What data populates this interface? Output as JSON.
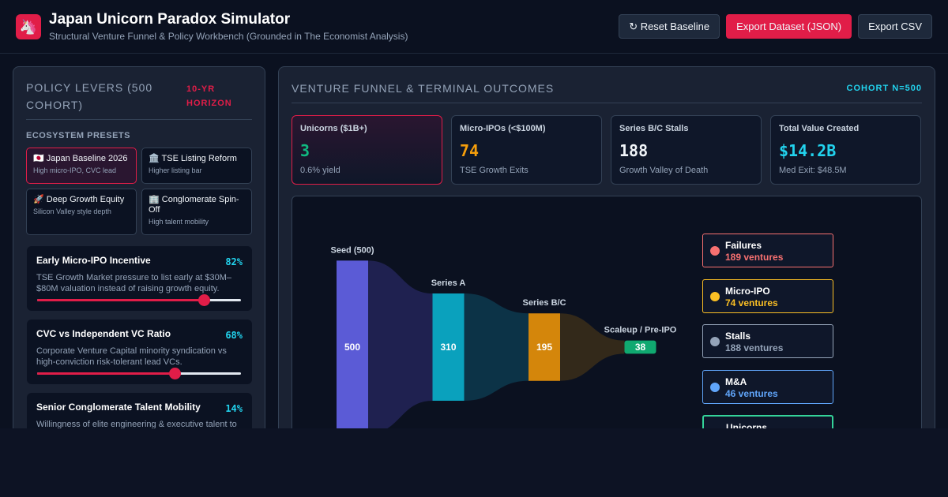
{
  "header": {
    "title": "Japan Unicorn Paradox Simulator",
    "subtitle": "Structural Venture Funnel & Policy Workbench (Grounded in The Economist Analysis)",
    "buttons": [
      "↻ Reset Baseline",
      "Export Dataset (JSON)",
      "Export CSV"
    ]
  },
  "levers": {
    "title": "POLICY LEVERS (500 COHORT)",
    "badge": "10-YR HORIZON",
    "presets_title": "ECOSYSTEM PRESETS",
    "presets": [
      {
        "label": "🇯🇵 Japan Baseline 2026",
        "note": "High micro-IPO, CVC lead"
      },
      {
        "label": "🏛️ TSE Listing Reform",
        "note": "Higher listing bar"
      },
      {
        "label": "🚀 Deep Growth Equity",
        "note": "Silicon Valley style depth"
      },
      {
        "label": "🏢 Conglomerate Spin-Off",
        "note": "High talent mobility"
      }
    ],
    "slider_range": [
      0,
      100
    ],
    "sliders": [
      {
        "label": "Early Micro-IPO Incentive",
        "value": 82,
        "value_label": "82%",
        "description": "TSE Growth Market pressure to list early at $30M–$80M valuation instead of raising growth equity."
      },
      {
        "label": "CVC vs Independent VC Ratio",
        "value": 68,
        "value_label": "68%",
        "description": "Corporate Venture Capital minority syndication vs high-conviction risk-tolerant lead VCs."
      },
      {
        "label": "Senior Conglomerate Talent Mobility",
        "value": 14,
        "value_label": "14%",
        "description": "Willingness of elite engineering & executive talent to"
      }
    ]
  },
  "outcomes": {
    "title": "VENTURE FUNNEL & TERMINAL OUTCOMES",
    "badge": "COHORT N=500",
    "kpis": [
      {
        "label": "Unicorns ($1B+)",
        "value": "3",
        "note": "0.6% yield",
        "color": "#10b981"
      },
      {
        "label": "Micro-IPOs (<$100M)",
        "value": "74",
        "note": "TSE Growth Exits",
        "color": "#f59e0b"
      },
      {
        "label": "Series B/C Stalls",
        "value": "188",
        "note": "Growth Valley of Death",
        "color": "#f1f5f9"
      },
      {
        "label": "Total Value Created",
        "value": "$14.2B",
        "note": "Med Exit: $48.5M",
        "color": "#22d3ee"
      }
    ]
  },
  "funnel": {
    "stages": [
      {
        "label": "Seed (500)",
        "value": 500,
        "color": "#5b5bd6"
      },
      {
        "label": "Series A",
        "value": 310,
        "color": "#0aa1bd"
      },
      {
        "label": "Series B/C",
        "value": 195,
        "color": "#d4860b"
      },
      {
        "label": "Scaleup / Pre-IPO",
        "value": 38,
        "color": "#10a970"
      }
    ],
    "results": [
      {
        "label": "Failures",
        "value_label": "189 ventures",
        "color": "#f87171"
      },
      {
        "label": "Micro-IPO",
        "value_label": "74 ventures",
        "color": "#fbbf24"
      },
      {
        "label": "Stalls",
        "value_label": "188 ventures",
        "color": "#94a3b8"
      },
      {
        "label": "M&A",
        "value_label": "46 ventures",
        "color": "#60a5fa"
      },
      {
        "label": "Unicorns",
        "color": "#34d399"
      }
    ]
  }
}
